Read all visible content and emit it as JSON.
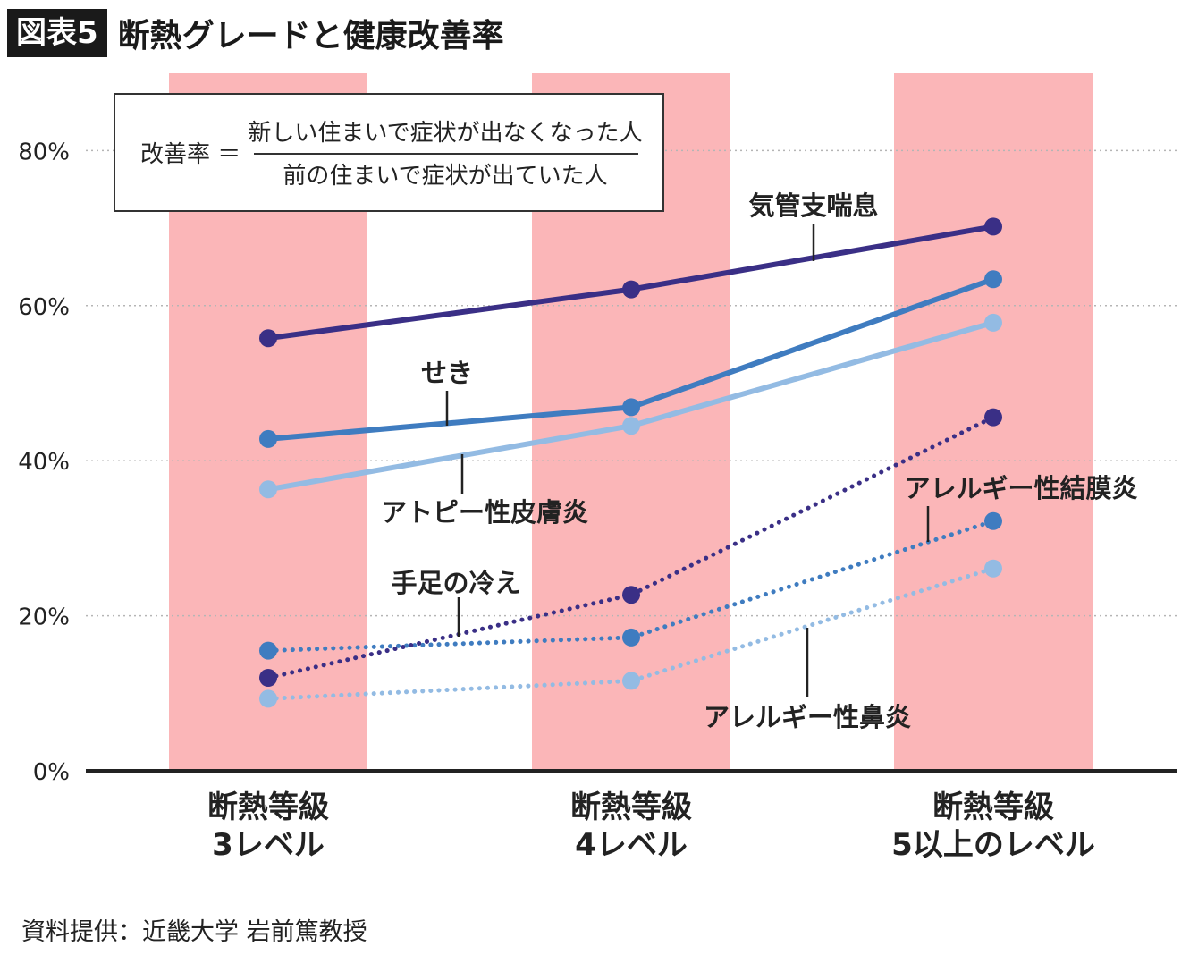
{
  "title": {
    "badge": "図表5",
    "text": "断熱グレードと健康改善率"
  },
  "source": "資料提供：近畿大学 岩前篤教授",
  "formula": {
    "lhs": "改善率 ＝",
    "numerator": "新しい住まいで症状が出なくなった人",
    "denominator": "前の住まいで症状が出ていた人"
  },
  "colors": {
    "band": "#fbb6b8",
    "dark": "#3a2f86",
    "mid": "#3f7cc0",
    "light": "#93bbe3",
    "axis": "#222222",
    "grid": "#b5b5b5"
  },
  "chart_data": {
    "type": "line",
    "categories": [
      [
        "断熱等級",
        "3レベル"
      ],
      [
        "断熱等級",
        "4レベル"
      ],
      [
        "断熱等級",
        "5以上のレベル"
      ]
    ],
    "ylim": [
      0,
      90
    ],
    "yticks": [
      0,
      20,
      40,
      60,
      80
    ],
    "ytick_labels": [
      "0%",
      "20%",
      "40%",
      "60%",
      "80%"
    ],
    "series": [
      {
        "name": "気管支喘息",
        "values": [
          55.8,
          62.1,
          70.2
        ],
        "style": "solid",
        "color": "dark"
      },
      {
        "name": "せき",
        "values": [
          42.8,
          46.9,
          63.4
        ],
        "style": "solid",
        "color": "mid"
      },
      {
        "name": "アトピー性皮膚炎",
        "values": [
          36.3,
          44.5,
          57.8
        ],
        "style": "solid",
        "color": "light"
      },
      {
        "name": "手足の冷え",
        "values": [
          12.0,
          22.7,
          45.6
        ],
        "style": "dotted",
        "color": "dark"
      },
      {
        "name": "アレルギー性結膜炎",
        "values": [
          15.5,
          17.2,
          32.2
        ],
        "style": "dotted",
        "color": "mid"
      },
      {
        "name": "アレルギー性鼻炎",
        "values": [
          9.3,
          11.6,
          26.1
        ],
        "style": "dotted",
        "color": "light"
      }
    ]
  }
}
